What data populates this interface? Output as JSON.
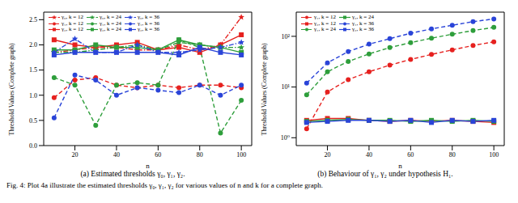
{
  "caption": "Fig. 4: Plot 4a illustrate the estimated thresholds γ₀, γ₁, γ₂ for various values of n and k for a complete graph.",
  "chart_data": [
    {
      "type": "line",
      "title": "(a) Estimated thresholds γ₀, γ₁, γ₂.",
      "x_label": "n",
      "y_label": "Threshold Values (Complete graph)",
      "x": [
        10,
        20,
        30,
        40,
        50,
        60,
        70,
        80,
        90,
        100
      ],
      "xlim": [
        5,
        105
      ],
      "xticks": [
        20,
        40,
        60,
        80,
        100
      ],
      "ylim": [
        0,
        2.65
      ],
      "yticks": [
        {
          "value": 0,
          "label": "0.0"
        },
        {
          "value": 0.5,
          "label": "0.5"
        },
        {
          "value": 1,
          "label": "1.0"
        },
        {
          "value": 1.5,
          "label": "1.5"
        },
        {
          "value": 2,
          "label": "2.0"
        },
        {
          "value": 2.5,
          "label": "2.5"
        }
      ],
      "grid": false,
      "legend": "upper left",
      "series": [
        {
          "name": "γ₀, k = 12",
          "color": "#e6211f",
          "marker": "star",
          "line_style": "dashdot",
          "values": [
            1.85,
            1.9,
            1.95,
            1.95,
            1.9,
            1.9,
            2.0,
            1.9,
            2.0,
            2.55
          ]
        },
        {
          "name": "γ₁, k = 12",
          "color": "#e6211f",
          "marker": "circle",
          "line_style": "dashed",
          "values": [
            0.95,
            1.3,
            1.35,
            1.2,
            1.15,
            1.2,
            1.15,
            1.2,
            1.2,
            1.15
          ]
        },
        {
          "name": "γ₂, k = 12",
          "color": "#e6211f",
          "marker": "square",
          "line_style": "solid",
          "values": [
            2.1,
            2.0,
            1.95,
            2.0,
            2.05,
            1.9,
            1.95,
            1.85,
            2.0,
            2.2
          ]
        },
        {
          "name": "γ₀, k = 24",
          "color": "#2e9e3b",
          "marker": "star",
          "line_style": "dashdot",
          "values": [
            1.85,
            1.85,
            1.9,
            1.95,
            2.0,
            1.9,
            2.05,
            2.0,
            1.95,
            1.95
          ]
        },
        {
          "name": "γ₁, k = 24",
          "color": "#2e9e3b",
          "marker": "circle",
          "line_style": "dashed",
          "values": [
            1.35,
            1.2,
            0.4,
            1.2,
            1.25,
            1.2,
            2.1,
            1.95,
            0.25,
            0.9
          ]
        },
        {
          "name": "γ₂, k = 24",
          "color": "#2e9e3b",
          "marker": "square",
          "line_style": "solid",
          "values": [
            1.9,
            1.9,
            2.0,
            1.95,
            1.95,
            1.9,
            2.1,
            2.0,
            1.95,
            1.85
          ]
        },
        {
          "name": "γ₀, k = 36",
          "color": "#2a44d8",
          "marker": "star",
          "line_style": "dashdot",
          "values": [
            1.85,
            2.12,
            1.85,
            1.85,
            2.0,
            1.85,
            1.85,
            1.9,
            1.95,
            2.05
          ]
        },
        {
          "name": "γ₁, k = 36",
          "color": "#2a44d8",
          "marker": "circle",
          "line_style": "dashed",
          "values": [
            0.55,
            1.4,
            1.3,
            1.0,
            1.15,
            1.1,
            1.05,
            1.2,
            1.0,
            1.2
          ]
        },
        {
          "name": "γ₂, k = 36",
          "color": "#2a44d8",
          "marker": "square",
          "line_style": "solid",
          "values": [
            1.8,
            1.85,
            1.85,
            1.85,
            1.85,
            1.85,
            1.8,
            1.95,
            1.85,
            1.8
          ]
        }
      ]
    },
    {
      "type": "line",
      "title": "(b) Behaviour of γ₁, γ₂ under hypothesis H₁.",
      "x_label": "n",
      "y_label": "Threshold Values (Complete graph)",
      "log": "y",
      "x": [
        10,
        20,
        30,
        40,
        50,
        60,
        70,
        80,
        90,
        100
      ],
      "xlim": [
        5,
        105
      ],
      "xticks": [
        20,
        40,
        60,
        80,
        100
      ],
      "ylim": [
        0.7,
        300
      ],
      "yticks": [
        {
          "value": 1,
          "label": "10⁰"
        },
        {
          "value": 10,
          "label": "10¹"
        },
        {
          "value": 100,
          "label": "10²"
        }
      ],
      "grid": false,
      "legend": "upper left",
      "series": [
        {
          "name": "γ₁, k = 12",
          "color": "#e6211f",
          "marker": "circle",
          "line_style": "dashed",
          "values": [
            1.5,
            8,
            14,
            20,
            27,
            35,
            44,
            54,
            66,
            78
          ]
        },
        {
          "name": "γ₂, k = 12",
          "color": "#e6211f",
          "marker": "square",
          "line_style": "solid",
          "values": [
            2.2,
            2.4,
            2.4,
            2.2,
            2.1,
            2.2,
            2.1,
            2.2,
            2.1,
            2.0
          ]
        },
        {
          "name": "γ₁, k = 24",
          "color": "#2e9e3b",
          "marker": "circle",
          "line_style": "dashed",
          "values": [
            7,
            20,
            32,
            45,
            60,
            75,
            92,
            110,
            130,
            150
          ]
        },
        {
          "name": "γ₂, k = 24",
          "color": "#2e9e3b",
          "marker": "square",
          "line_style": "solid",
          "values": [
            2.1,
            2.2,
            2.3,
            2.2,
            2.2,
            2.1,
            2.2,
            2.1,
            2.2,
            2.1
          ]
        },
        {
          "name": "γ₁, k = 36",
          "color": "#2a44d8",
          "marker": "circle",
          "line_style": "dashed",
          "values": [
            12,
            30,
            50,
            70,
            90,
            115,
            140,
            165,
            195,
            220
          ]
        },
        {
          "name": "γ₂, k = 36",
          "color": "#2a44d8",
          "marker": "square",
          "line_style": "solid",
          "values": [
            2.0,
            2.1,
            2.2,
            2.2,
            2.1,
            2.2,
            2.0,
            2.2,
            2.1,
            2.2
          ]
        }
      ]
    }
  ]
}
